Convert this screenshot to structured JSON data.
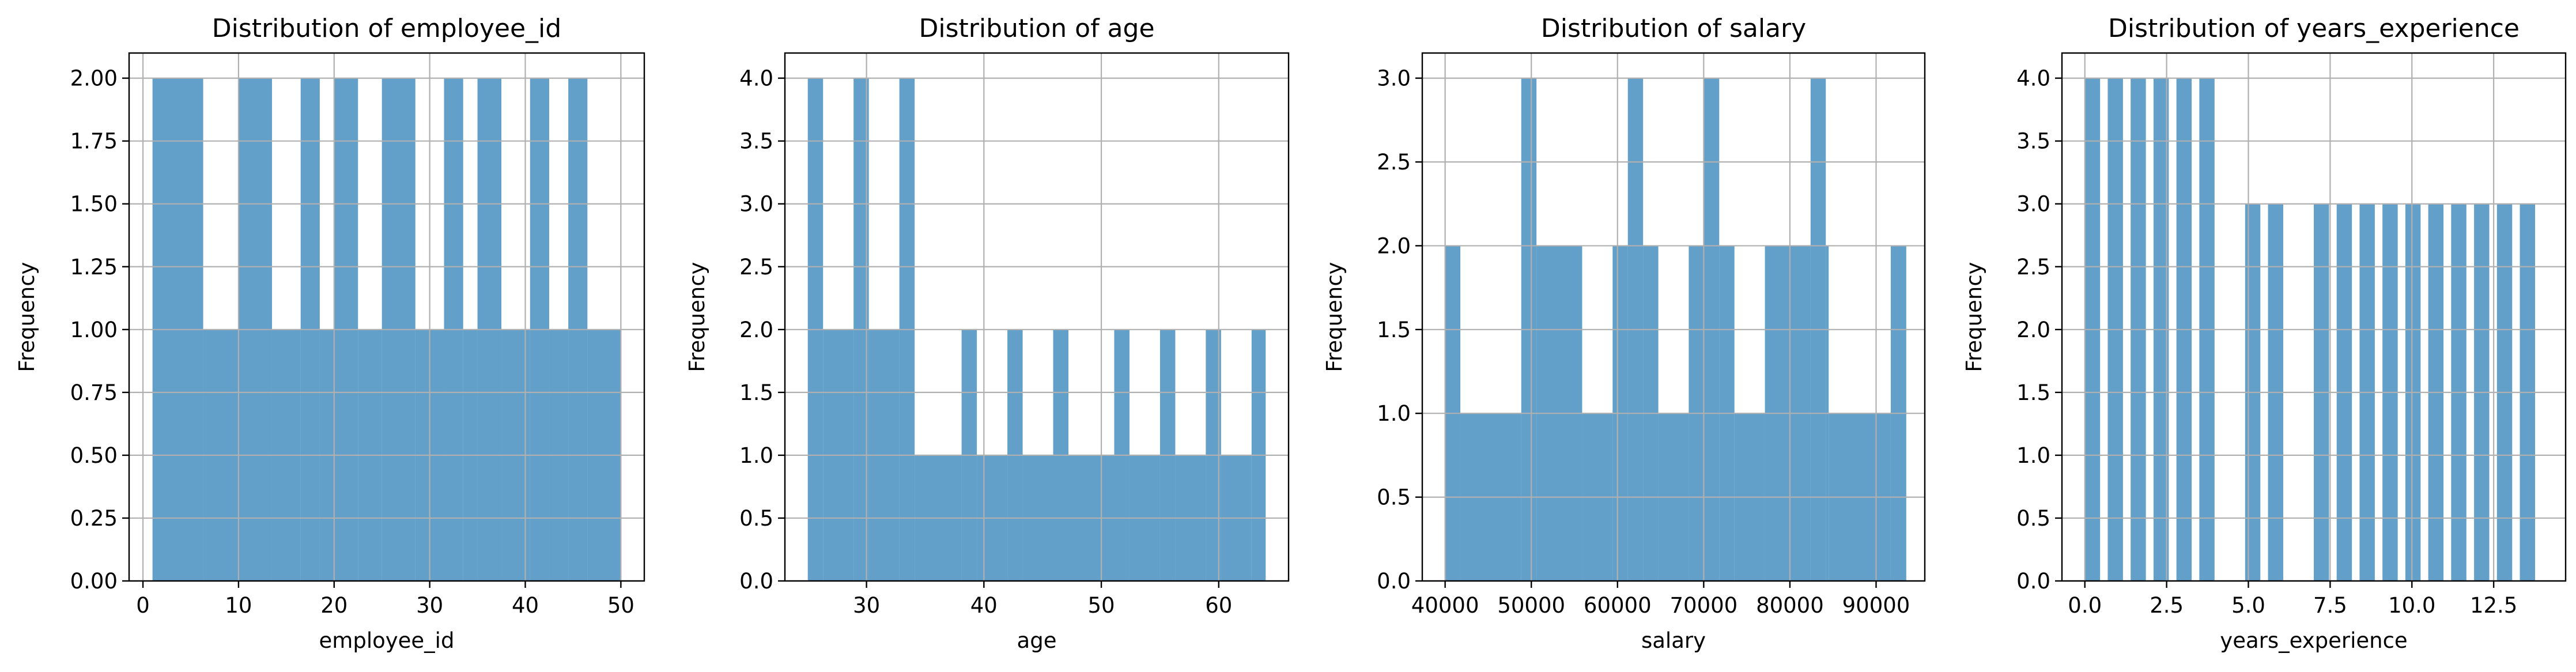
{
  "chart_data": [
    {
      "type": "bar",
      "title": "Distribution of employee_id",
      "xlabel": "employee_id",
      "ylabel": "Frequency",
      "xlim": [
        -1.45,
        52.45
      ],
      "ylim": [
        0,
        2.1
      ],
      "xticks": [
        0,
        10,
        20,
        30,
        40,
        50
      ],
      "yticks": [
        0.0,
        0.25,
        0.5,
        0.75,
        1.0,
        1.25,
        1.5,
        1.75,
        2.0
      ],
      "ytick_labels": [
        "0.00",
        "0.25",
        "0.50",
        "0.75",
        "1.00",
        "1.25",
        "1.50",
        "1.75",
        "2.00"
      ],
      "xtick_labels": [
        "0",
        "10",
        "20",
        "30",
        "40",
        "50"
      ],
      "grid": true,
      "bins": {
        "start": 1,
        "width": 1.633,
        "values": [
          2,
          2,
          1,
          2,
          2,
          1,
          2,
          2,
          1,
          2,
          1,
          2,
          2,
          1,
          2,
          2,
          1,
          2,
          2,
          1,
          2,
          1,
          2,
          2,
          1,
          2,
          2,
          1,
          2,
          2
        ]
      }
    },
    {
      "type": "bar",
      "title": "Distribution of age",
      "xlabel": "age",
      "ylabel": "Frequency",
      "xlim": [
        23.05,
        65.95
      ],
      "ylim": [
        0,
        4.2
      ],
      "xticks": [
        30,
        40,
        50,
        60
      ],
      "xtick_labels": [
        "30",
        "40",
        "50",
        "60"
      ],
      "yticks": [
        0.0,
        0.5,
        1.0,
        1.5,
        2.0,
        2.5,
        3.0,
        3.5,
        4.0
      ],
      "ytick_labels": [
        "0.0",
        "0.5",
        "1.0",
        "1.5",
        "2.0",
        "2.5",
        "3.0",
        "3.5",
        "4.0"
      ],
      "grid": true,
      "bins": {
        "start": 25,
        "width": 1.3,
        "values": [
          4,
          2,
          2,
          4,
          2,
          2,
          4,
          1,
          1,
          1,
          2,
          1,
          2,
          1,
          1,
          2,
          1,
          1,
          2,
          1,
          1,
          2,
          1,
          1,
          2,
          1,
          1,
          2,
          1,
          2
        ]
      }
    },
    {
      "type": "bar",
      "title": "Distribution of salary",
      "xlabel": "salary",
      "ylabel": "Frequency",
      "xlim": [
        37350,
        95650
      ],
      "ylim": [
        0,
        3.15
      ],
      "xticks": [
        40000,
        50000,
        60000,
        70000,
        80000,
        90000
      ],
      "xtick_labels": [
        "40000",
        "50000",
        "60000",
        "70000",
        "80000",
        "90000"
      ],
      "yticks": [
        0.0,
        0.5,
        1.0,
        1.5,
        2.0,
        2.5,
        3.0
      ],
      "ytick_labels": [
        "0.0",
        "0.5",
        "1.0",
        "1.5",
        "2.0",
        "2.5",
        "3.0"
      ],
      "grid": true,
      "bins": {
        "start": 40000,
        "width": 1766.67,
        "values": [
          2,
          1,
          1,
          1,
          1,
          3,
          2,
          2,
          2,
          1,
          2,
          2,
          3,
          1,
          1,
          1,
          2,
          3,
          2,
          1,
          1,
          2,
          2,
          3,
          1,
          1,
          1,
          1,
          1,
          2
        ]
      }
    },
    {
      "type": "bar",
      "title": "Distribution of years_experience",
      "xlabel": "years_experience",
      "ylabel": "Frequency",
      "xlim": [
        -0.7,
        14.7
      ],
      "ylim": [
        0,
        4.2
      ],
      "xticks": [
        0,
        2.5,
        5,
        7.5,
        10,
        12.5
      ],
      "xtick_labels": [
        "0.0",
        "2.5",
        "5.0",
        "7.5",
        "10.0",
        "12.5"
      ],
      "yticks": [
        0.0,
        0.5,
        1.0,
        1.5,
        2.0,
        2.5,
        3.0,
        3.5,
        4.0
      ],
      "ytick_labels": [
        "0.0",
        "0.5",
        "1.0",
        "1.5",
        "2.0",
        "2.5",
        "3.0",
        "3.5",
        "4.0"
      ],
      "grid": true,
      "bins": {
        "start": 0,
        "width": 0.4667,
        "values": [
          4,
          0,
          4,
          0,
          0,
          4,
          0,
          4,
          0,
          0,
          4,
          0,
          4,
          0,
          0,
          3,
          0,
          3,
          0,
          0,
          0,
          3,
          0,
          3,
          0,
          3,
          0,
          3,
          0,
          3,
          0,
          3,
          0,
          3,
          0
        ]
      },
      "bar_positions": [
        0,
        0.7,
        1.4,
        2.1,
        2.8,
        3.5,
        4.2,
        4.9,
        5.6,
        6.3
      ]
    }
  ]
}
